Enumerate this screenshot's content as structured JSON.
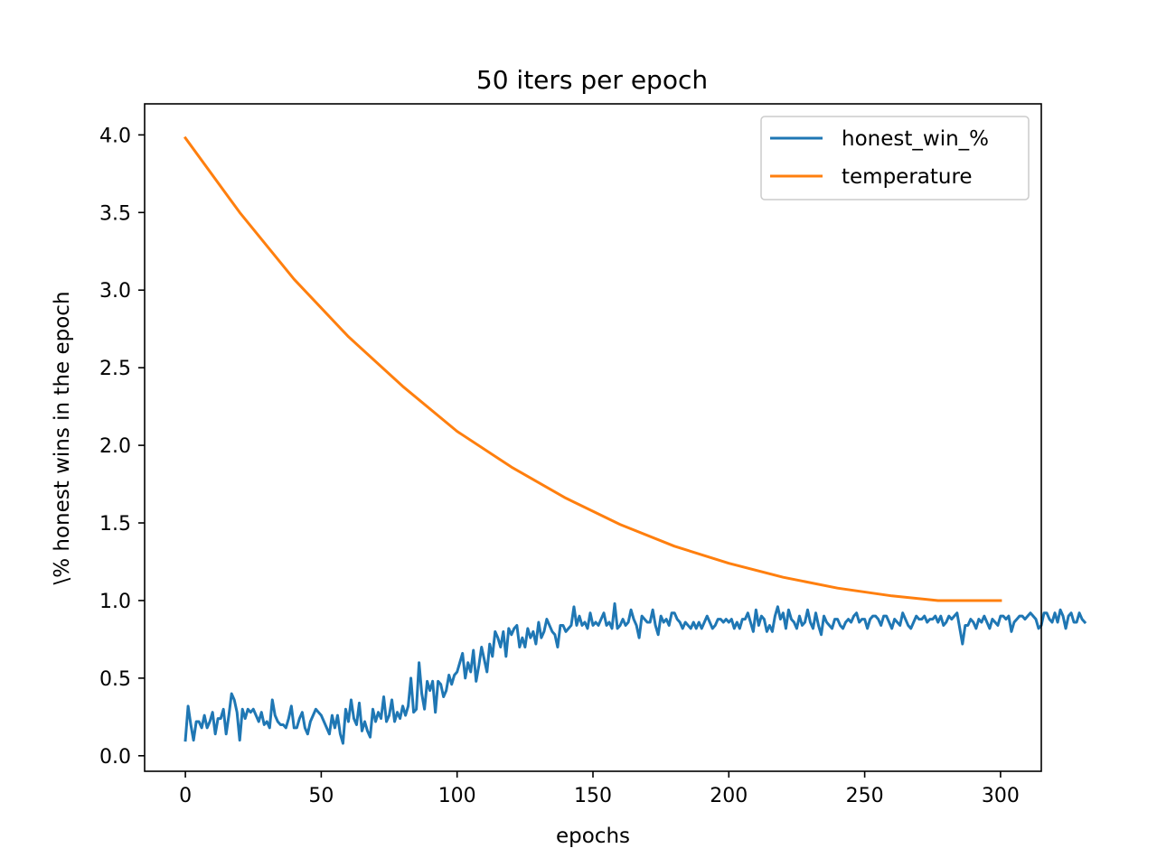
{
  "chart_data": {
    "type": "line",
    "title": "50 iters per epoch",
    "xlabel": "epochs",
    "ylabel": "\\% honest wins in the epoch",
    "xlim": [
      -15,
      315
    ],
    "ylim": [
      -0.1,
      4.2
    ],
    "xticks": [
      0,
      50,
      100,
      150,
      200,
      250,
      300
    ],
    "yticks": [
      0.0,
      0.5,
      1.0,
      1.5,
      2.0,
      2.5,
      3.0,
      3.5,
      4.0
    ],
    "xtick_labels": [
      "0",
      "50",
      "100",
      "150",
      "200",
      "250",
      "300"
    ],
    "ytick_labels": [
      "0.0",
      "0.5",
      "1.0",
      "1.5",
      "2.0",
      "2.5",
      "3.0",
      "3.5",
      "4.0"
    ],
    "grid": false,
    "legend": "upper right",
    "series": [
      {
        "name": "honest_win_%",
        "color": "#1f77b4",
        "x_start": 0,
        "x_step": 1,
        "values": [
          0.1,
          0.32,
          0.2,
          0.1,
          0.22,
          0.22,
          0.18,
          0.26,
          0.18,
          0.22,
          0.28,
          0.14,
          0.24,
          0.24,
          0.3,
          0.14,
          0.26,
          0.4,
          0.36,
          0.28,
          0.1,
          0.3,
          0.24,
          0.3,
          0.28,
          0.3,
          0.26,
          0.22,
          0.28,
          0.2,
          0.22,
          0.18,
          0.36,
          0.26,
          0.22,
          0.2,
          0.2,
          0.18,
          0.24,
          0.32,
          0.18,
          0.18,
          0.24,
          0.28,
          0.18,
          0.14,
          0.22,
          0.26,
          0.3,
          0.28,
          0.26,
          0.22,
          0.18,
          0.14,
          0.26,
          0.18,
          0.26,
          0.14,
          0.08,
          0.3,
          0.22,
          0.36,
          0.24,
          0.2,
          0.34,
          0.16,
          0.22,
          0.16,
          0.12,
          0.3,
          0.22,
          0.28,
          0.24,
          0.38,
          0.22,
          0.26,
          0.36,
          0.22,
          0.28,
          0.24,
          0.32,
          0.26,
          0.32,
          0.5,
          0.28,
          0.3,
          0.6,
          0.4,
          0.3,
          0.48,
          0.42,
          0.48,
          0.28,
          0.48,
          0.46,
          0.38,
          0.42,
          0.52,
          0.46,
          0.52,
          0.54,
          0.6,
          0.66,
          0.5,
          0.6,
          0.54,
          0.68,
          0.48,
          0.58,
          0.7,
          0.62,
          0.54,
          0.72,
          0.64,
          0.8,
          0.76,
          0.7,
          0.8,
          0.64,
          0.82,
          0.78,
          0.82,
          0.84,
          0.7,
          0.76,
          0.7,
          0.82,
          0.76,
          0.8,
          0.72,
          0.86,
          0.76,
          0.8,
          0.88,
          0.84,
          0.8,
          0.78,
          0.7,
          0.84,
          0.84,
          0.8,
          0.82,
          0.84,
          0.96,
          0.84,
          0.9,
          0.84,
          0.86,
          0.82,
          0.92,
          0.84,
          0.86,
          0.84,
          0.88,
          0.92,
          0.84,
          0.86,
          0.82,
          0.98,
          0.82,
          0.84,
          0.88,
          0.84,
          0.86,
          0.94,
          0.88,
          0.84,
          0.76,
          0.9,
          0.88,
          0.86,
          0.86,
          0.94,
          0.84,
          0.78,
          0.9,
          0.86,
          0.88,
          0.84,
          0.92,
          0.92,
          0.88,
          0.86,
          0.82,
          0.86,
          0.84,
          0.82,
          0.86,
          0.82,
          0.86,
          0.82,
          0.86,
          0.9,
          0.86,
          0.82,
          0.84,
          0.88,
          0.88,
          0.86,
          0.88,
          0.86,
          0.88,
          0.82,
          0.86,
          0.82,
          0.88,
          0.88,
          0.92,
          0.86,
          0.8,
          0.94,
          0.84,
          0.9,
          0.88,
          0.8,
          0.84,
          0.8,
          0.9,
          0.96,
          0.88,
          0.92,
          0.82,
          0.94,
          0.88,
          0.86,
          0.82,
          0.9,
          0.84,
          0.86,
          0.94,
          0.86,
          0.82,
          0.92,
          0.84,
          0.78,
          0.9,
          0.86,
          0.84,
          0.82,
          0.88,
          0.88,
          0.84,
          0.82,
          0.86,
          0.88,
          0.86,
          0.9,
          0.92,
          0.86,
          0.88,
          0.88,
          0.82,
          0.88,
          0.9,
          0.9,
          0.88,
          0.84,
          0.9,
          0.9,
          0.86,
          0.82,
          0.88,
          0.86,
          0.84,
          0.92,
          0.88,
          0.84,
          0.82,
          0.86,
          0.9,
          0.88,
          0.88,
          0.9,
          0.86,
          0.88,
          0.88,
          0.9,
          0.86,
          0.9,
          0.84,
          0.86,
          0.9,
          0.88,
          0.9,
          0.92,
          0.82,
          0.72,
          0.84,
          0.84,
          0.88,
          0.86,
          0.82,
          0.88,
          0.86,
          0.9,
          0.86,
          0.82,
          0.88,
          0.86,
          0.84,
          0.9,
          0.9,
          0.88,
          0.9,
          0.8,
          0.86,
          0.88,
          0.9,
          0.9,
          0.88,
          0.9,
          0.92,
          0.9,
          0.88,
          0.82,
          0.84,
          0.92,
          0.92,
          0.88,
          0.86,
          0.92,
          0.86,
          0.94,
          0.9,
          0.82,
          0.9,
          0.92,
          0.86,
          0.86,
          0.92,
          0.88,
          0.86
        ]
      },
      {
        "name": "temperature",
        "color": "#ff7f0e",
        "x": [
          0,
          20,
          40,
          60,
          80,
          100,
          120,
          140,
          160,
          180,
          200,
          220,
          240,
          260,
          277,
          300
        ],
        "values": [
          3.98,
          3.5,
          3.07,
          2.7,
          2.38,
          2.09,
          1.86,
          1.66,
          1.49,
          1.35,
          1.24,
          1.15,
          1.08,
          1.03,
          1.0,
          1.0
        ]
      }
    ]
  }
}
